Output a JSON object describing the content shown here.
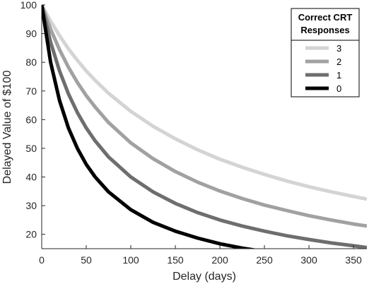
{
  "chart_data": {
    "type": "line",
    "title": "",
    "xlabel": "Delay (days)",
    "ylabel": "Delayed Value of $100",
    "xlim": [
      0,
      365
    ],
    "ylim": [
      15,
      100
    ],
    "x_ticks": [
      0,
      50,
      100,
      150,
      200,
      250,
      300,
      350
    ],
    "y_ticks": [
      20,
      30,
      40,
      50,
      60,
      70,
      80,
      90,
      100
    ],
    "grid": false,
    "legend": {
      "title_line1": "Correct CRT",
      "title_line2": "Responses",
      "placement": "top-right"
    },
    "x": [
      0,
      10,
      20,
      30,
      40,
      50,
      60,
      75,
      100,
      125,
      150,
      175,
      200,
      225,
      250,
      275,
      300,
      325,
      350,
      365
    ],
    "series": [
      {
        "name": "3",
        "color": "#d4d4d4",
        "values": [
          100,
          94.3,
          89.3,
          84.7,
          80.7,
          77.0,
          73.7,
          69.2,
          62.9,
          57.7,
          53.3,
          49.5,
          46.2,
          43.4,
          40.9,
          38.6,
          36.6,
          34.8,
          33.2,
          32.3
        ]
      },
      {
        "name": "2",
        "color": "#a1a1a1",
        "values": [
          100,
          91.5,
          84.4,
          78.3,
          73.0,
          68.4,
          64.4,
          59.0,
          51.9,
          46.4,
          41.9,
          38.2,
          35.1,
          32.5,
          30.2,
          28.3,
          26.5,
          25.0,
          23.6,
          22.9
        ]
      },
      {
        "name": "1",
        "color": "#6e6e6e",
        "values": [
          100,
          87.0,
          77.0,
          69.0,
          62.5,
          57.1,
          52.6,
          47.0,
          40.0,
          34.8,
          30.8,
          27.6,
          25.0,
          22.9,
          21.1,
          19.5,
          18.2,
          17.0,
          16.0,
          15.4
        ]
      },
      {
        "name": "0",
        "color": "#000000",
        "values": [
          100,
          80.0,
          66.7,
          57.1,
          50.0,
          44.4,
          40.0,
          34.8,
          28.6,
          24.2,
          21.1,
          18.7,
          16.7,
          15.2,
          14.0,
          13.0,
          12.0,
          11.3,
          10.6,
          10.2
        ]
      }
    ]
  }
}
